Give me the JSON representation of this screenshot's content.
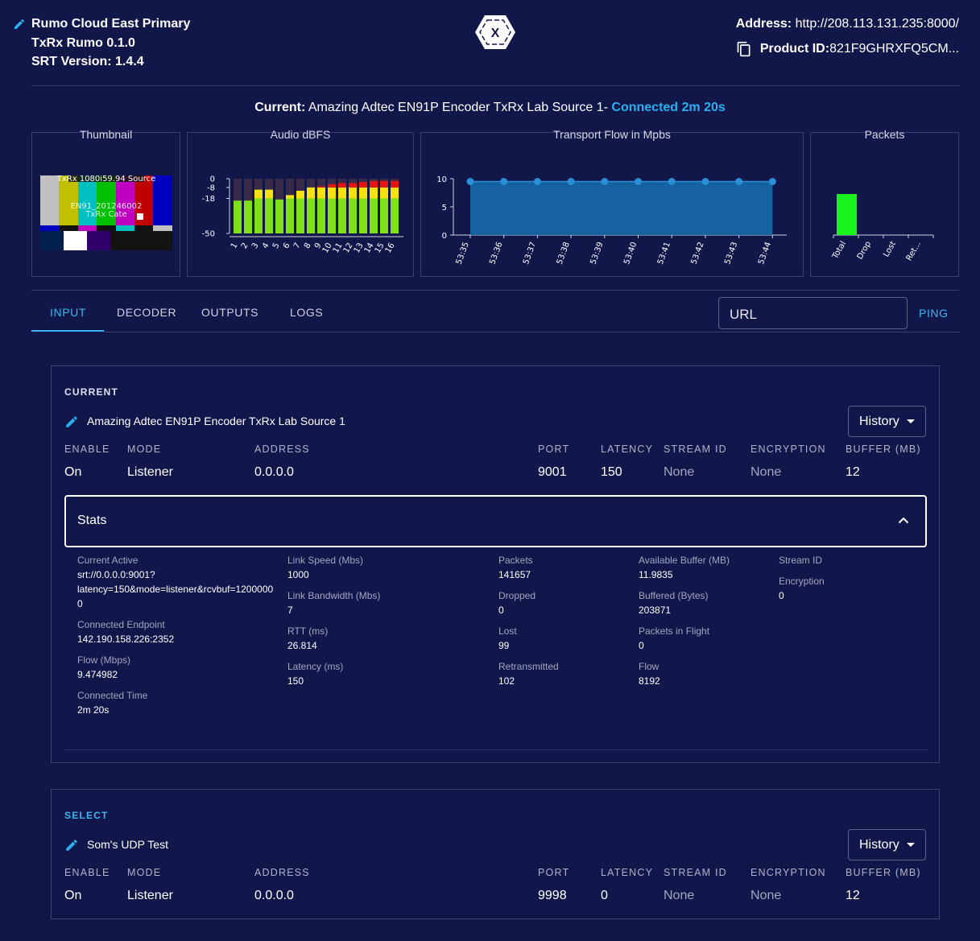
{
  "header": {
    "device_name": "Rumo Cloud East Primary",
    "product": "TxRx Rumo 0.1.0",
    "srt_version": "SRT Version: 1.4.4",
    "logo_letter": "X",
    "address_label": "Address:",
    "address_value": "http://208.113.131.235:8000/",
    "product_id_label": "Product ID:",
    "product_id_value": "821F9GHRXFQ5CM..."
  },
  "current": {
    "label": "Current:",
    "source": "Amazing Adtec EN91P Encoder TxRx Lab Source 1-",
    "status": "Connected 2m 20s"
  },
  "panels": {
    "thumbnail": {
      "title": "Thumbnail",
      "caption_top": "TxRx 1080i59.94 Source",
      "caption_1": "EN91_201246002",
      "caption_2": "TxRx Cate"
    },
    "audio": {
      "title": "Audio dBFS"
    },
    "transport": {
      "title": "Transport Flow in Mpbs"
    },
    "packets": {
      "title": "Packets"
    }
  },
  "chart_data": [
    {
      "type": "bar",
      "title": "Audio dBFS",
      "categories": [
        "1",
        "2",
        "3",
        "4",
        "5",
        "6",
        "7",
        "8",
        "9",
        "10",
        "11",
        "12",
        "13",
        "14",
        "15",
        "16"
      ],
      "series": [
        {
          "values": [
            -20,
            -20,
            -10,
            -10,
            -19,
            -15,
            -11,
            -8,
            -7,
            -5,
            -4,
            -4,
            -3,
            -2,
            -2,
            -2
          ]
        }
      ],
      "y_ticks": [
        "0",
        "-8",
        "-18",
        "-50"
      ],
      "ylim": [
        -50,
        0
      ]
    },
    {
      "type": "area",
      "title": "Transport Flow in Mpbs",
      "x": [
        "53:35",
        "53:36",
        "53:37",
        "53:38",
        "53:39",
        "53:40",
        "53:41",
        "53:42",
        "53:43",
        "53:44"
      ],
      "y": [
        9.5,
        9.5,
        9.5,
        9.5,
        9.5,
        9.5,
        9.5,
        9.5,
        9.5,
        9.5
      ],
      "y_ticks": [
        "10",
        "5",
        "0"
      ],
      "ylim": [
        0,
        10
      ]
    },
    {
      "type": "bar",
      "title": "Packets",
      "categories": [
        "Total",
        "Drop",
        "Lost",
        "Ret..."
      ],
      "values": [
        141657,
        0,
        99,
        102
      ]
    }
  ],
  "tabs": [
    {
      "label": "INPUT",
      "active": true
    },
    {
      "label": "DECODER",
      "active": false
    },
    {
      "label": "OUTPUTS",
      "active": false
    },
    {
      "label": "LOGS",
      "active": false
    }
  ],
  "url_field": {
    "placeholder": "URL"
  },
  "ping_label": "PING",
  "columns": [
    "ENABLE",
    "MODE",
    "ADDRESS",
    "PORT",
    "LATENCY",
    "STREAM ID",
    "ENCRYPTION",
    "BUFFER (MB)"
  ],
  "current_card": {
    "title": "CURRENT",
    "name": "Amazing Adtec EN91P Encoder TxRx Lab Source 1",
    "history": "History",
    "values": [
      "On",
      "Listener",
      "0.0.0.0",
      "9001",
      "150",
      "None",
      "None",
      "12"
    ]
  },
  "stats": {
    "title": "Stats",
    "col1": [
      {
        "label": "Current Active",
        "value": "srt://0.0.0.0:9001?\nlatency=150&mode=listener&rcvbuf=1200000\n0"
      },
      {
        "label": "Connected Endpoint",
        "value": "142.190.158.226:2352"
      },
      {
        "label": "Flow (Mbps)",
        "value": "9.474982"
      },
      {
        "label": "Connected Time",
        "value": "2m 20s"
      }
    ],
    "col2": [
      {
        "label": "Link Speed (Mbs)",
        "value": "1000"
      },
      {
        "label": "Link Bandwidth (Mbs)",
        "value": "7"
      },
      {
        "label": "RTT (ms)",
        "value": "26.814"
      },
      {
        "label": "Latency (ms)",
        "value": "150"
      }
    ],
    "col3": [
      {
        "label": "Packets",
        "value": "141657"
      },
      {
        "label": "Dropped",
        "value": "0"
      },
      {
        "label": "Lost",
        "value": "99"
      },
      {
        "label": "Retransmitted",
        "value": "102"
      }
    ],
    "col4": [
      {
        "label": "Available Buffer (MB)",
        "value": "11.9835"
      },
      {
        "label": "Buffered (Bytes)",
        "value": "203871"
      },
      {
        "label": "Packets in Flight",
        "value": "0"
      },
      {
        "label": "Flow",
        "value": "8192"
      }
    ],
    "col5": [
      {
        "label": "Stream ID",
        "value": ""
      },
      {
        "label": "Encryption",
        "value": "0"
      }
    ]
  },
  "select_card": {
    "title": "SELECT",
    "name": "Som's UDP Test",
    "history": "History",
    "values": [
      "On",
      "Listener",
      "0.0.0.0",
      "9998",
      "0",
      "None",
      "None",
      "12"
    ]
  },
  "colors": {
    "accent": "#3fb4ee",
    "background": "#12174a",
    "meter_green": "#7fe01a",
    "meter_yellow": "#f5e20f",
    "meter_red": "#e81414",
    "flow_fill": "#1769a8",
    "packets_green": "#19f51c"
  }
}
